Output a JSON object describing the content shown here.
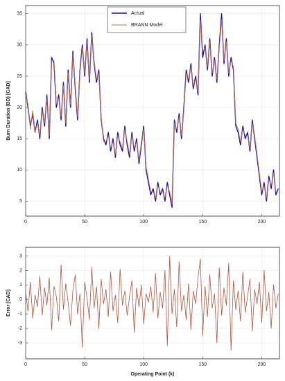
{
  "chart_data": [
    {
      "type": "line",
      "ylabel": "Burn Duration (BD) [CAD]",
      "x": [
        0,
        2,
        4,
        6,
        8,
        10,
        12,
        14,
        16,
        18,
        20,
        22,
        24,
        26,
        28,
        30,
        32,
        34,
        36,
        38,
        40,
        42,
        44,
        46,
        48,
        50,
        52,
        54,
        56,
        58,
        60,
        62,
        64,
        66,
        68,
        70,
        72,
        74,
        76,
        78,
        80,
        82,
        84,
        86,
        88,
        90,
        92,
        94,
        96,
        98,
        100,
        102,
        104,
        106,
        108,
        110,
        112,
        114,
        116,
        118,
        120,
        122,
        124,
        126,
        128,
        130,
        132,
        134,
        136,
        138,
        140,
        142,
        144,
        146,
        148,
        150,
        152,
        154,
        156,
        158,
        160,
        162,
        164,
        166,
        168,
        170,
        172,
        174,
        176,
        178,
        180,
        182,
        184,
        186,
        188,
        190,
        192,
        194,
        196,
        198,
        200,
        202,
        204,
        206,
        208,
        210,
        212,
        214
      ],
      "series": [
        {
          "name": "Actual",
          "color": "#1010c8",
          "values": [
            22.5,
            20,
            17,
            19,
            16,
            18,
            15,
            20,
            17,
            22,
            15,
            28,
            27,
            20,
            22,
            18,
            24,
            17,
            26,
            20,
            29,
            23,
            18,
            26,
            30,
            25,
            31,
            24,
            32,
            27,
            24,
            26,
            18,
            15,
            14,
            16,
            13,
            15,
            12,
            16,
            14,
            13,
            17,
            14,
            12,
            16,
            13,
            15,
            11,
            14,
            17,
            10,
            8,
            6,
            7,
            5,
            8,
            6,
            7,
            5,
            8,
            6,
            4,
            18,
            16,
            19,
            15,
            20,
            26,
            24,
            27,
            23,
            25,
            22,
            35,
            28,
            30,
            26,
            31,
            25,
            28,
            24,
            30,
            35,
            27,
            31,
            25,
            28,
            26,
            17,
            16,
            14,
            17,
            15,
            16,
            13,
            18,
            15,
            12,
            9,
            6,
            8,
            5,
            9,
            7,
            10,
            6,
            7
          ]
        },
        {
          "name": "BRANN Model",
          "color": "#c8703a",
          "values": [
            22,
            20.5,
            16.5,
            19.5,
            16,
            17.5,
            15.5,
            19.5,
            17.5,
            21.5,
            15.5,
            27.5,
            27.5,
            20.5,
            21.5,
            18.5,
            23.5,
            17.5,
            25.5,
            20.5,
            28.5,
            23.5,
            18.5,
            25.5,
            29.5,
            25.5,
            30.5,
            24.5,
            31.5,
            27.5,
            24.5,
            25.5,
            18.5,
            14.5,
            14.5,
            15.5,
            13.5,
            14.5,
            12.5,
            15.5,
            14.5,
            13.5,
            16.5,
            14.5,
            12.5,
            15.5,
            13.5,
            14.5,
            11.5,
            14.5,
            16.5,
            10.5,
            8.5,
            6.5,
            6.5,
            5.5,
            7.5,
            6.5,
            6.5,
            5.5,
            7.5,
            6.5,
            4.5,
            17.5,
            16.5,
            18.5,
            15.5,
            19.5,
            25.5,
            24.5,
            26.5,
            23.5,
            24.5,
            22.5,
            34,
            29,
            29.5,
            26.5,
            30.5,
            25.5,
            27.5,
            24.5,
            29.5,
            34,
            27.5,
            30.5,
            25.5,
            27.5,
            26.5,
            17.5,
            16.5,
            14.5,
            16.5,
            15.5,
            15.5,
            13.5,
            17.5,
            15.5,
            12.5,
            9.5,
            6.5,
            7.5,
            5.5,
            8.5,
            7.5,
            9.5,
            6.5,
            6.5
          ]
        }
      ],
      "xlim": [
        0,
        215
      ],
      "xticks": [
        0,
        50,
        100,
        150,
        200
      ],
      "ylim": [
        2.6,
        36.3
      ],
      "yticks": [
        5,
        10,
        15,
        20,
        25,
        30,
        35
      ],
      "grid": true,
      "legend": "upper center"
    },
    {
      "type": "line",
      "xlabel": "Operating Point (k)",
      "ylabel": "Error [CAD]",
      "x": [
        0,
        2,
        4,
        6,
        8,
        10,
        12,
        14,
        16,
        18,
        20,
        22,
        24,
        26,
        28,
        30,
        32,
        34,
        36,
        38,
        40,
        42,
        44,
        46,
        48,
        50,
        52,
        54,
        56,
        58,
        60,
        62,
        64,
        66,
        68,
        70,
        72,
        74,
        76,
        78,
        80,
        82,
        84,
        86,
        88,
        90,
        92,
        94,
        96,
        98,
        100,
        102,
        104,
        106,
        108,
        110,
        112,
        114,
        116,
        118,
        120,
        122,
        124,
        126,
        128,
        130,
        132,
        134,
        136,
        138,
        140,
        142,
        144,
        146,
        148,
        150,
        152,
        154,
        156,
        158,
        160,
        162,
        164,
        166,
        168,
        170,
        172,
        174,
        176,
        178,
        180,
        182,
        184,
        186,
        188,
        190,
        192,
        194,
        196,
        198,
        200,
        202,
        204,
        206,
        208,
        210,
        212,
        214
      ],
      "values": [
        0.5,
        -0.8,
        1.2,
        -1.3,
        0.3,
        -0.5,
        1.6,
        -1.1,
        0.8,
        -0.4,
        1.5,
        -2.1,
        0.9,
        0.2,
        -1.5,
        2.4,
        -0.7,
        1.1,
        -0.2,
        -1.8,
        0.6,
        1.7,
        -1.0,
        0.4,
        -3.3,
        1.2,
        0.1,
        -1.4,
        2.2,
        -0.6,
        0.9,
        -2.0,
        1.4,
        -0.3,
        0.7,
        -1.2,
        1.9,
        -0.8,
        0.3,
        -1.6,
        2.1,
        -0.4,
        0.6,
        -1.1,
        0.2,
        1.3,
        -2.3,
        0.8,
        -0.5,
        1.0,
        -1.7,
        0.4,
        -0.2,
        0.9,
        -0.9,
        1.8,
        -1.3,
        0.5,
        -0.6,
        2.0,
        -3.2,
        3.0,
        -1.0,
        0.7,
        -1.9,
        2.6,
        -0.8,
        0.3,
        -1.4,
        1.1,
        -2.1,
        0.6,
        -0.3,
        1.5,
        2.8,
        -2.5,
        0.9,
        -1.2,
        1.7,
        -0.6,
        0.4,
        -3.0,
        2.2,
        -1.1,
        0.8,
        -0.4,
        2.5,
        -3.5,
        1.3,
        -0.7,
        0.6,
        -1.5,
        1.9,
        -0.9,
        0.2,
        1.4,
        -2.2,
        0.7,
        -0.3,
        1.2,
        -1.6,
        2.0,
        -0.8,
        0.5,
        -2.0,
        1.0,
        -0.6,
        0.4
      ],
      "color": "#b5533c",
      "xlim": [
        0,
        215
      ],
      "xticks": [
        0,
        50,
        100,
        150,
        200
      ],
      "ylim": [
        -4.1,
        3.6
      ],
      "yticks": [
        -3,
        -2,
        -1,
        0,
        1,
        2,
        3
      ],
      "grid": true
    }
  ]
}
